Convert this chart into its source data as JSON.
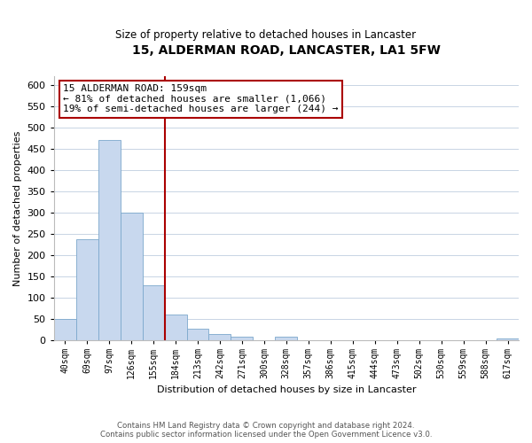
{
  "title": "15, ALDERMAN ROAD, LANCASTER, LA1 5FW",
  "subtitle": "Size of property relative to detached houses in Lancaster",
  "xlabel": "Distribution of detached houses by size in Lancaster",
  "ylabel": "Number of detached properties",
  "categories": [
    "40sqm",
    "69sqm",
    "97sqm",
    "126sqm",
    "155sqm",
    "184sqm",
    "213sqm",
    "242sqm",
    "271sqm",
    "300sqm",
    "328sqm",
    "357sqm",
    "386sqm",
    "415sqm",
    "444sqm",
    "473sqm",
    "502sqm",
    "530sqm",
    "559sqm",
    "588sqm",
    "617sqm"
  ],
  "values": [
    50,
    238,
    470,
    300,
    130,
    62,
    29,
    15,
    10,
    0,
    10,
    0,
    0,
    0,
    0,
    0,
    0,
    0,
    0,
    0,
    5
  ],
  "bar_color": "#c8d8ee",
  "bar_edge_color": "#7ca8cc",
  "property_line_color": "#aa0000",
  "annotation_line1": "15 ALDERMAN ROAD: 159sqm",
  "annotation_line2": "← 81% of detached houses are smaller (1,066)",
  "annotation_line3": "19% of semi-detached houses are larger (244) →",
  "annotation_box_color": "#ffffff",
  "annotation_box_edge_color": "#aa0000",
  "ylim": [
    0,
    620
  ],
  "yticks": [
    0,
    50,
    100,
    150,
    200,
    250,
    300,
    350,
    400,
    450,
    500,
    550,
    600
  ],
  "footer_line1": "Contains HM Land Registry data © Crown copyright and database right 2024.",
  "footer_line2": "Contains public sector information licensed under the Open Government Licence v3.0.",
  "background_color": "#ffffff",
  "grid_color": "#c8d4e4"
}
